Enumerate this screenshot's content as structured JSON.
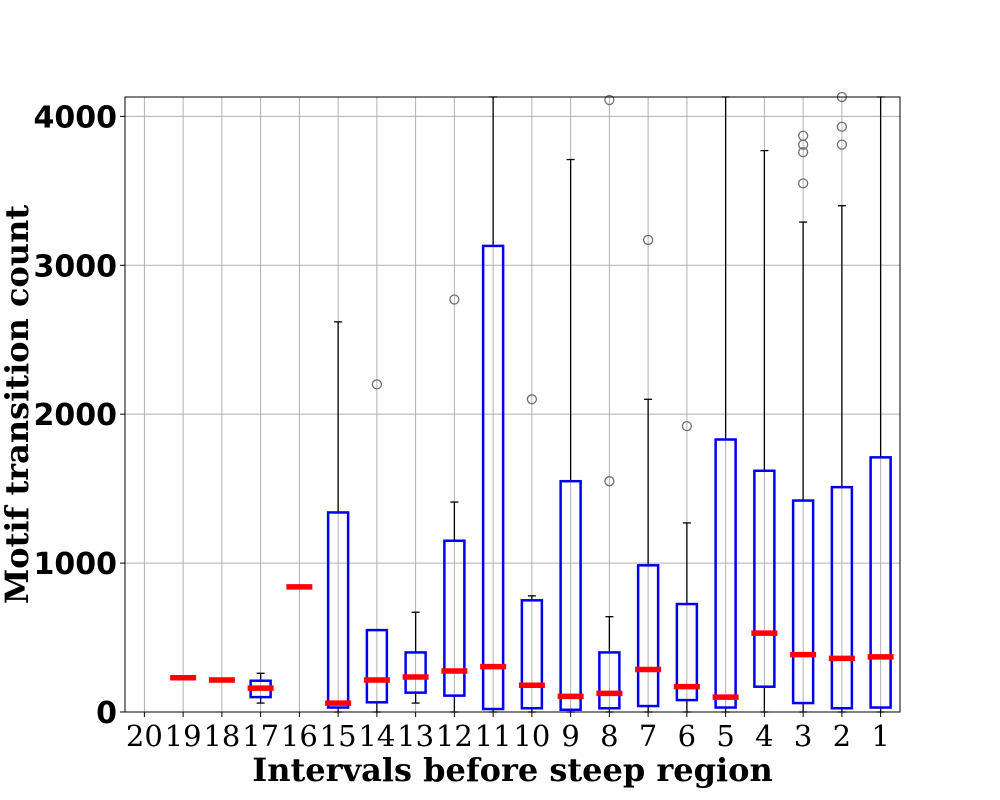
{
  "chart_data": {
    "type": "box",
    "title": "",
    "xlabel": "Intervals before steep region",
    "ylabel": "Motif transition count",
    "ylim": [
      0,
      4130
    ],
    "yticks": [
      0,
      1000,
      2000,
      3000,
      4000
    ],
    "grid": true,
    "categories": [
      "20",
      "19",
      "18",
      "17",
      "16",
      "15",
      "14",
      "13",
      "12",
      "11",
      "10",
      "9",
      "8",
      "7",
      "6",
      "5",
      "4",
      "3",
      "2",
      "1"
    ],
    "boxes": [
      {
        "category": "20",
        "empty": true
      },
      {
        "category": "19",
        "median": 230
      },
      {
        "category": "18",
        "median": 215
      },
      {
        "category": "17",
        "q1": 100,
        "median": 160,
        "q3": 210,
        "whisker_low": 60,
        "whisker_high": 260,
        "outliers": []
      },
      {
        "category": "16",
        "median": 840
      },
      {
        "category": "15",
        "q1": 30,
        "median": 60,
        "q3": 1340,
        "whisker_low": 0,
        "whisker_high": 2620,
        "outliers": []
      },
      {
        "category": "14",
        "q1": 65,
        "median": 215,
        "q3": 550,
        "whisker_low": 0,
        "whisker_high": 550,
        "outliers": [
          2200
        ]
      },
      {
        "category": "13",
        "q1": 130,
        "median": 235,
        "q3": 400,
        "whisker_low": 60,
        "whisker_high": 670,
        "outliers": []
      },
      {
        "category": "12",
        "q1": 110,
        "median": 275,
        "q3": 1150,
        "whisker_low": 0,
        "whisker_high": 1410,
        "outliers": [
          2770
        ]
      },
      {
        "category": "11",
        "q1": 20,
        "median": 305,
        "q3": 3130,
        "whisker_low": 0,
        "whisker_high": 4130,
        "outliers": []
      },
      {
        "category": "10",
        "q1": 25,
        "median": 180,
        "q3": 750,
        "whisker_low": 0,
        "whisker_high": 780,
        "outliers": [
          2100
        ]
      },
      {
        "category": "9",
        "q1": 15,
        "median": 105,
        "q3": 1550,
        "whisker_low": 0,
        "whisker_high": 3710,
        "outliers": []
      },
      {
        "category": "8",
        "q1": 25,
        "median": 125,
        "q3": 400,
        "whisker_low": 0,
        "whisker_high": 640,
        "outliers": [
          1550,
          4110
        ]
      },
      {
        "category": "7",
        "q1": 40,
        "median": 285,
        "q3": 985,
        "whisker_low": 0,
        "whisker_high": 2100,
        "outliers": [
          3170
        ]
      },
      {
        "category": "6",
        "q1": 80,
        "median": 170,
        "q3": 725,
        "whisker_low": 0,
        "whisker_high": 1270,
        "outliers": [
          1920
        ]
      },
      {
        "category": "5",
        "q1": 30,
        "median": 100,
        "q3": 1830,
        "whisker_low": 0,
        "whisker_high": 4130,
        "outliers": []
      },
      {
        "category": "4",
        "q1": 170,
        "median": 530,
        "q3": 1620,
        "whisker_low": 0,
        "whisker_high": 3770,
        "outliers": []
      },
      {
        "category": "3",
        "q1": 60,
        "median": 385,
        "q3": 1420,
        "whisker_low": 0,
        "whisker_high": 3290,
        "outliers": [
          3550,
          3760,
          3810,
          3870
        ]
      },
      {
        "category": "2",
        "q1": 25,
        "median": 360,
        "q3": 1510,
        "whisker_low": 0,
        "whisker_high": 3400,
        "outliers": [
          3810,
          3930,
          4130
        ]
      },
      {
        "category": "1",
        "q1": 30,
        "median": 370,
        "q3": 1710,
        "whisker_low": 0,
        "whisker_high": 4130,
        "outliers": []
      }
    ],
    "colors": {
      "box": "#0000ee",
      "median": "#ff0000",
      "whisker": "#000000",
      "outlier": "#6e6e6e",
      "grid": "#b0b0b0"
    }
  }
}
